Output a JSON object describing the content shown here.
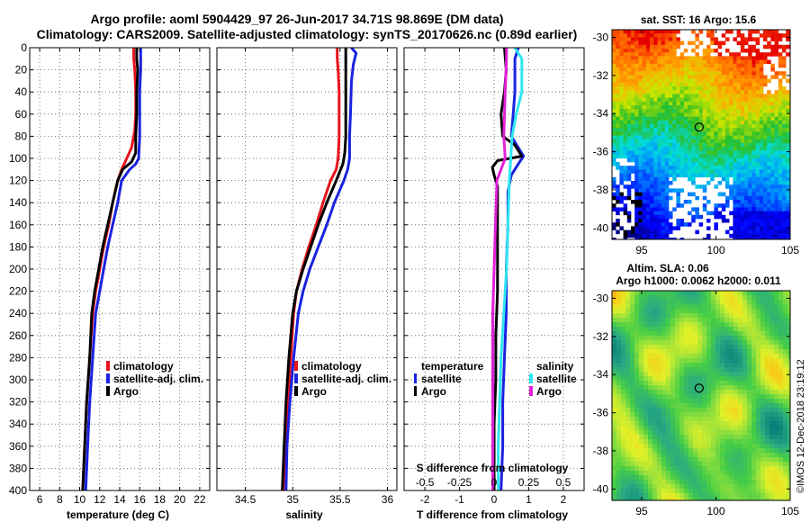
{
  "header": {
    "title_line1": "Argo profile: aoml 5904429_97 26-Jun-2017 34.71S 98.869E (DM data)",
    "title_line2": "Climatology: CARS2009. Satellite-adjusted climatology: synTS_20170626.nc (0.89d earlier)"
  },
  "colors": {
    "climatology": "#e8141a",
    "satellite": "#1a22e0",
    "argo": "#000000",
    "satellite_salinity": "#2ee6f0",
    "argo_salinity": "#e020d8"
  },
  "chart_data": [
    {
      "type": "line",
      "id": "temperature",
      "xlabel": "temperature (deg C)",
      "ylabel": "",
      "xlim": [
        5,
        23
      ],
      "ylim": [
        400,
        0
      ],
      "xticks": [
        6,
        8,
        10,
        12,
        14,
        16,
        18,
        20,
        22
      ],
      "yticks": [
        0,
        20,
        40,
        60,
        80,
        100,
        120,
        140,
        160,
        180,
        200,
        220,
        240,
        260,
        280,
        300,
        320,
        340,
        360,
        380,
        400
      ],
      "grid": true,
      "legend": [
        "climatology",
        "satellite-adj. clim.",
        "Argo"
      ],
      "series": [
        {
          "name": "climatology",
          "color": "#e8141a",
          "points": [
            [
              15.4,
              0
            ],
            [
              15.4,
              10
            ],
            [
              15.5,
              20
            ],
            [
              15.6,
              40
            ],
            [
              15.6,
              60
            ],
            [
              15.5,
              75
            ],
            [
              15.2,
              90
            ],
            [
              14.7,
              100
            ],
            [
              14.2,
              110
            ],
            [
              13.8,
              120
            ],
            [
              13.3,
              140
            ],
            [
              12.9,
              160
            ],
            [
              12.4,
              180
            ],
            [
              12.0,
              200
            ],
            [
              11.6,
              220
            ],
            [
              11.3,
              240
            ],
            [
              11.0,
              280
            ],
            [
              10.7,
              320
            ],
            [
              10.5,
              360
            ],
            [
              10.3,
              400
            ]
          ]
        },
        {
          "name": "satellite-adj. clim.",
          "color": "#1a22e0",
          "points": [
            [
              16.1,
              0
            ],
            [
              16.1,
              10
            ],
            [
              16.1,
              20
            ],
            [
              16.0,
              40
            ],
            [
              16.0,
              60
            ],
            [
              16.0,
              80
            ],
            [
              15.9,
              100
            ],
            [
              15.6,
              105
            ],
            [
              15.0,
              110
            ],
            [
              14.2,
              120
            ],
            [
              13.8,
              140
            ],
            [
              13.3,
              160
            ],
            [
              12.8,
              180
            ],
            [
              12.4,
              200
            ],
            [
              12.0,
              220
            ],
            [
              11.6,
              240
            ],
            [
              11.3,
              280
            ],
            [
              11.0,
              320
            ],
            [
              10.8,
              360
            ],
            [
              10.6,
              400
            ]
          ]
        },
        {
          "name": "Argo",
          "color": "#000000",
          "points": [
            [
              15.7,
              0
            ],
            [
              15.7,
              10
            ],
            [
              15.8,
              20
            ],
            [
              15.7,
              40
            ],
            [
              15.7,
              60
            ],
            [
              15.6,
              80
            ],
            [
              15.6,
              95
            ],
            [
              15.2,
              103
            ],
            [
              14.3,
              110
            ],
            [
              13.8,
              120
            ],
            [
              13.3,
              140
            ],
            [
              12.8,
              160
            ],
            [
              12.3,
              180
            ],
            [
              11.9,
              200
            ],
            [
              11.5,
              220
            ],
            [
              11.2,
              240
            ],
            [
              11.0,
              280
            ],
            [
              10.7,
              320
            ],
            [
              10.5,
              360
            ],
            [
              10.3,
              400
            ]
          ]
        }
      ]
    },
    {
      "type": "line",
      "id": "salinity",
      "xlabel": "salinity",
      "ylabel": "",
      "xlim": [
        34.2,
        36.1
      ],
      "ylim": [
        400,
        0
      ],
      "xticks": [
        34.5,
        35,
        35.5,
        36
      ],
      "yticks": [
        0,
        20,
        40,
        60,
        80,
        100,
        120,
        140,
        160,
        180,
        200,
        220,
        240,
        260,
        280,
        300,
        320,
        340,
        360,
        380,
        400
      ],
      "grid": true,
      "legend": [
        "climatology",
        "satellite-adj. clim.",
        "Argo"
      ],
      "series": [
        {
          "name": "climatology",
          "color": "#e8141a",
          "points": [
            [
              35.47,
              0
            ],
            [
              35.47,
              10
            ],
            [
              35.48,
              20
            ],
            [
              35.49,
              40
            ],
            [
              35.49,
              60
            ],
            [
              35.49,
              80
            ],
            [
              35.48,
              100
            ],
            [
              35.46,
              110
            ],
            [
              35.4,
              120
            ],
            [
              35.32,
              140
            ],
            [
              35.25,
              160
            ],
            [
              35.17,
              180
            ],
            [
              35.1,
              200
            ],
            [
              35.04,
              220
            ],
            [
              35.01,
              240
            ],
            [
              34.98,
              280
            ],
            [
              34.95,
              320
            ],
            [
              34.92,
              360
            ],
            [
              34.9,
              400
            ]
          ]
        },
        {
          "name": "satellite-adj. clim.",
          "color": "#1a22e0",
          "points": [
            [
              35.62,
              0
            ],
            [
              35.67,
              5
            ],
            [
              35.64,
              15
            ],
            [
              35.62,
              30
            ],
            [
              35.61,
              60
            ],
            [
              35.6,
              80
            ],
            [
              35.6,
              100
            ],
            [
              35.58,
              110
            ],
            [
              35.54,
              120
            ],
            [
              35.44,
              140
            ],
            [
              35.36,
              160
            ],
            [
              35.27,
              180
            ],
            [
              35.18,
              200
            ],
            [
              35.11,
              220
            ],
            [
              35.06,
              240
            ],
            [
              35.01,
              280
            ],
            [
              34.97,
              320
            ],
            [
              34.94,
              360
            ],
            [
              34.93,
              400
            ]
          ]
        },
        {
          "name": "Argo",
          "color": "#000000",
          "points": [
            [
              35.56,
              0
            ],
            [
              35.56,
              10
            ],
            [
              35.56,
              20
            ],
            [
              35.56,
              40
            ],
            [
              35.56,
              60
            ],
            [
              35.56,
              80
            ],
            [
              35.55,
              95
            ],
            [
              35.53,
              105
            ],
            [
              35.46,
              120
            ],
            [
              35.36,
              140
            ],
            [
              35.27,
              160
            ],
            [
              35.19,
              180
            ],
            [
              35.11,
              200
            ],
            [
              35.04,
              220
            ],
            [
              35.0,
              240
            ],
            [
              34.96,
              280
            ],
            [
              34.93,
              320
            ],
            [
              34.91,
              360
            ],
            [
              34.89,
              400
            ]
          ]
        }
      ]
    },
    {
      "type": "line",
      "id": "differences",
      "xlabel": "T difference from climatology",
      "xlabel_top": "S difference from climatology",
      "xlim": [
        -2.6,
        2.6
      ],
      "ylim": [
        400,
        0
      ],
      "xticks": [
        -2,
        -1,
        0,
        1,
        2
      ],
      "xtick_labels": [
        "-2",
        "-1",
        "0",
        "1",
        "2"
      ],
      "s_ticks": [
        -0.5,
        -0.25,
        0,
        0.25,
        0.5
      ],
      "s_tick_labels": [
        "-0.5",
        "-0.25",
        "0",
        "0.25",
        "0.5"
      ],
      "s_scale": 4,
      "yticks": [
        0,
        20,
        40,
        60,
        80,
        100,
        120,
        140,
        160,
        180,
        200,
        220,
        240,
        260,
        280,
        300,
        320,
        340,
        360,
        380,
        400
      ],
      "grid": true,
      "legend_temperature_title": "temperature",
      "legend_salinity_title": "salinity",
      "legend_temperature": [
        "satellite",
        "Argo"
      ],
      "legend_salinity": [
        "satellite",
        "Argo"
      ],
      "series": [
        {
          "name": "temperature satellite",
          "color": "#1a22e0",
          "points": [
            [
              0.7,
              0
            ],
            [
              0.6,
              10
            ],
            [
              0.6,
              40
            ],
            [
              0.55,
              60
            ],
            [
              0.5,
              80
            ],
            [
              0.85,
              98
            ],
            [
              0.7,
              105
            ],
            [
              0.5,
              115
            ],
            [
              0.4,
              130
            ],
            [
              0.4,
              160
            ],
            [
              0.35,
              200
            ],
            [
              0.35,
              240
            ],
            [
              0.3,
              280
            ],
            [
              0.25,
              320
            ],
            [
              0.25,
              360
            ],
            [
              0.2,
              400
            ]
          ]
        },
        {
          "name": "temperature Argo",
          "color": "#000000",
          "points": [
            [
              0.3,
              0
            ],
            [
              0.35,
              20
            ],
            [
              0.3,
              40
            ],
            [
              0.2,
              60
            ],
            [
              0.25,
              80
            ],
            [
              0.6,
              88
            ],
            [
              0.8,
              98
            ],
            [
              0.1,
              102
            ],
            [
              -0.05,
              108
            ],
            [
              0.0,
              115
            ],
            [
              0.1,
              125
            ],
            [
              0.1,
              150
            ],
            [
              0.1,
              180
            ],
            [
              0.1,
              220
            ],
            [
              0.05,
              260
            ],
            [
              0.05,
              300
            ],
            [
              0.0,
              340
            ],
            [
              0.0,
              400
            ]
          ]
        },
        {
          "name": "salinity satellite",
          "color": "#2ee6f0",
          "points": [
            [
              0.15,
              0
            ],
            [
              0.2,
              10
            ],
            [
              0.2,
              40
            ],
            [
              0.16,
              60
            ],
            [
              0.13,
              80
            ],
            [
              0.12,
              100
            ],
            [
              0.11,
              120
            ],
            [
              0.1,
              160
            ],
            [
              0.09,
              200
            ],
            [
              0.07,
              240
            ],
            [
              0.05,
              280
            ],
            [
              0.04,
              320
            ],
            [
              0.03,
              360
            ],
            [
              0.03,
              400
            ]
          ]
        },
        {
          "name": "salinity Argo",
          "color": "#e020d8",
          "points": [
            [
              0.09,
              0
            ],
            [
              0.09,
              10
            ],
            [
              0.08,
              40
            ],
            [
              0.07,
              80
            ],
            [
              0.08,
              100
            ],
            [
              0.02,
              120
            ],
            [
              0.01,
              160
            ],
            [
              0.0,
              200
            ],
            [
              -0.01,
              240
            ],
            [
              -0.01,
              280
            ],
            [
              -0.01,
              320
            ],
            [
              -0.01,
              360
            ],
            [
              -0.01,
              400
            ]
          ]
        }
      ]
    },
    {
      "type": "heatmap",
      "id": "sst_map",
      "title": "sat. SST: 16 Argo: 15.6",
      "xlim": [
        93,
        105
      ],
      "ylim": [
        -40.6,
        -29.6
      ],
      "xticks": [
        95,
        100,
        105
      ],
      "yticks": [
        -30,
        -32,
        -34,
        -36,
        -38,
        -40
      ],
      "marker": [
        98.87,
        -34.71
      ]
    },
    {
      "type": "heatmap",
      "id": "sla_map",
      "title_line1": "Altim. SLA: 0.06",
      "title_line2": "Argo h1000: 0.0062 h2000: 0.011",
      "xlim": [
        93,
        105
      ],
      "ylim": [
        -40.6,
        -29.6
      ],
      "xticks": [
        95,
        100,
        105
      ],
      "yticks": [
        -30,
        -32,
        -34,
        -36,
        -38,
        -40
      ],
      "marker": [
        98.87,
        -34.71
      ]
    }
  ],
  "footer": {
    "credit": "©IMOS 12-Dec-2018 23:19:12"
  }
}
